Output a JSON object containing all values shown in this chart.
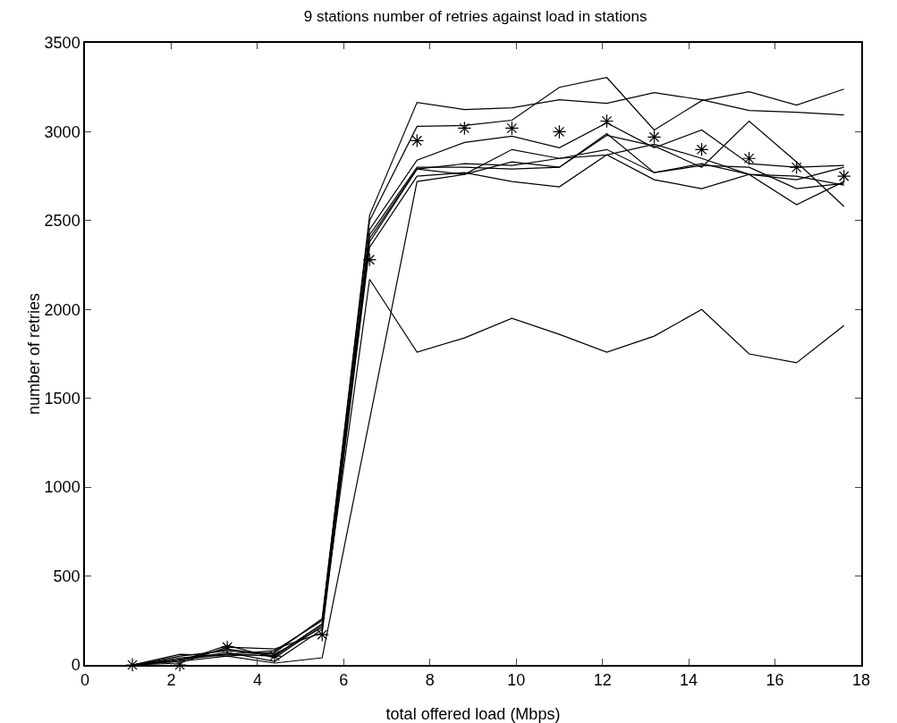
{
  "chart_data": {
    "type": "line",
    "title": "9 stations number of retries against load in stations",
    "xlabel": "total offered load (Mbps)",
    "ylabel": "number of retries",
    "x": [
      1.1,
      2.2,
      3.3,
      4.4,
      5.5,
      6.6,
      7.7,
      8.8,
      9.9,
      11,
      12.1,
      13.2,
      14.3,
      15.4,
      16.5,
      17.6
    ],
    "series": [
      {
        "color": "#000000",
        "values": [
          0,
          40,
          60,
          80,
          250,
          2530,
          3165,
          3125,
          3135,
          3180,
          3160,
          3220,
          3180,
          3120,
          3110,
          3095
        ]
      },
      {
        "color": "#000000",
        "values": [
          0,
          60,
          50,
          70,
          260,
          2500,
          3030,
          3035,
          3065,
          3250,
          3305,
          3010,
          3175,
          3225,
          3150,
          3240
        ]
      },
      {
        "color": "#000000",
        "values": [
          0,
          30,
          90,
          50,
          230,
          2450,
          2840,
          2940,
          2975,
          2910,
          3050,
          2910,
          3010,
          2820,
          2800,
          2810
        ]
      },
      {
        "color": "#000000",
        "values": [
          0,
          20,
          110,
          40,
          220,
          2420,
          2800,
          2800,
          2790,
          2800,
          2980,
          2920,
          2800,
          3060,
          2830,
          2580
        ]
      },
      {
        "color": "#000000",
        "values": [
          0,
          50,
          80,
          60,
          210,
          2400,
          2790,
          2820,
          2810,
          2850,
          2870,
          2930,
          2850,
          2760,
          2730,
          2800
        ]
      },
      {
        "color": "#000000",
        "values": [
          0,
          30,
          70,
          20,
          200,
          2380,
          2790,
          2760,
          2900,
          2850,
          2900,
          2770,
          2810,
          2800,
          2680,
          2710
        ]
      },
      {
        "color": "#000000",
        "values": [
          0,
          10,
          100,
          90,
          180,
          2350,
          2750,
          2770,
          2720,
          2690,
          2870,
          2730,
          2680,
          2760,
          2590,
          2720
        ]
      },
      {
        "color": "#000000",
        "values": [
          0,
          20,
          50,
          10,
          40,
          1380,
          2720,
          2760,
          2830,
          2800,
          2990,
          2770,
          2820,
          2760,
          2750,
          2700
        ]
      },
      {
        "color": "#000000",
        "values": [
          0,
          30,
          60,
          50,
          230,
          2170,
          1760,
          1840,
          1950,
          1860,
          1760,
          1850,
          2000,
          1750,
          1700,
          1910
        ]
      },
      {
        "type": "scatter",
        "marker": "cross",
        "color": "#000000",
        "values": [
          0,
          0,
          100,
          50,
          170,
          2280,
          2950,
          3020,
          3020,
          3000,
          3060,
          2970,
          2900,
          2850,
          2800,
          2750
        ]
      }
    ],
    "xlim": [
      0,
      18
    ],
    "xticks": [
      0,
      2,
      4,
      6,
      8,
      10,
      12,
      14,
      16,
      18
    ],
    "ylim": [
      0,
      3500
    ],
    "yticks": [
      0,
      500,
      1000,
      1500,
      2000,
      2500,
      3000,
      3500
    ],
    "grid": false,
    "legend": false,
    "line_style": "solid"
  }
}
